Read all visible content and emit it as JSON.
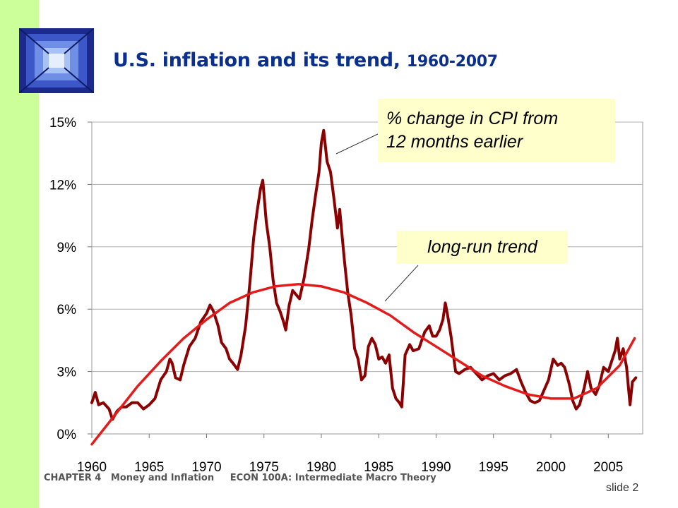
{
  "slide": {
    "title_main": "U.S. inflation and its trend, ",
    "title_years": "1960-2007",
    "footer": "CHAPTER 4   Money and Inflation     ECON 100A: Intermediate Macro Theory",
    "slide_number": "slide 2",
    "accent_color": "#ccff99",
    "title_color": "#0b2f8f"
  },
  "callouts": {
    "cpi_line1": "% change in CPI from",
    "cpi_line2": "12 months earlier",
    "trend": "long-run trend"
  },
  "chart_data": {
    "type": "line",
    "title": "U.S. inflation and its trend, 1960-2007",
    "x_ticks": [
      "1960",
      "1965",
      "1970",
      "1975",
      "1980",
      "1985",
      "1990",
      "1995",
      "2000",
      "2005"
    ],
    "y_ticks": [
      "0%",
      "3%",
      "6%",
      "9%",
      "12%",
      "15%"
    ],
    "xlim": [
      1960,
      2008
    ],
    "ylim": [
      0,
      15
    ],
    "grid": "horizontal",
    "series": [
      {
        "name": "% change in CPI from 12 months earlier",
        "color": "#8b0000",
        "points": [
          [
            1960.0,
            1.5
          ],
          [
            1960.3,
            2.0
          ],
          [
            1960.6,
            1.4
          ],
          [
            1961.0,
            1.5
          ],
          [
            1961.5,
            1.2
          ],
          [
            1961.8,
            0.7
          ],
          [
            1962.2,
            1.1
          ],
          [
            1962.6,
            1.3
          ],
          [
            1963.0,
            1.3
          ],
          [
            1963.5,
            1.5
          ],
          [
            1964.0,
            1.5
          ],
          [
            1964.5,
            1.2
          ],
          [
            1965.0,
            1.4
          ],
          [
            1965.5,
            1.7
          ],
          [
            1966.0,
            2.6
          ],
          [
            1966.5,
            3.0
          ],
          [
            1966.8,
            3.6
          ],
          [
            1967.0,
            3.4
          ],
          [
            1967.3,
            2.7
          ],
          [
            1967.7,
            2.6
          ],
          [
            1968.0,
            3.3
          ],
          [
            1968.5,
            4.2
          ],
          [
            1969.0,
            4.6
          ],
          [
            1969.5,
            5.4
          ],
          [
            1970.0,
            5.8
          ],
          [
            1970.3,
            6.2
          ],
          [
            1970.6,
            5.9
          ],
          [
            1971.0,
            5.2
          ],
          [
            1971.3,
            4.4
          ],
          [
            1971.7,
            4.1
          ],
          [
            1972.0,
            3.6
          ],
          [
            1972.3,
            3.4
          ],
          [
            1972.7,
            3.1
          ],
          [
            1973.0,
            3.8
          ],
          [
            1973.4,
            5.2
          ],
          [
            1973.8,
            7.4
          ],
          [
            1974.1,
            9.4
          ],
          [
            1974.4,
            10.7
          ],
          [
            1974.7,
            11.8
          ],
          [
            1974.9,
            12.2
          ],
          [
            1975.2,
            10.2
          ],
          [
            1975.5,
            9.0
          ],
          [
            1975.8,
            7.4
          ],
          [
            1976.1,
            6.3
          ],
          [
            1976.4,
            5.9
          ],
          [
            1976.7,
            5.4
          ],
          [
            1976.9,
            5.0
          ],
          [
            1977.2,
            6.2
          ],
          [
            1977.5,
            6.9
          ],
          [
            1977.8,
            6.7
          ],
          [
            1978.1,
            6.5
          ],
          [
            1978.5,
            7.5
          ],
          [
            1978.9,
            8.9
          ],
          [
            1979.2,
            10.3
          ],
          [
            1979.5,
            11.5
          ],
          [
            1979.8,
            12.6
          ],
          [
            1980.0,
            14.0
          ],
          [
            1980.2,
            14.6
          ],
          [
            1980.5,
            13.1
          ],
          [
            1980.8,
            12.6
          ],
          [
            1981.1,
            11.3
          ],
          [
            1981.4,
            9.9
          ],
          [
            1981.6,
            10.8
          ],
          [
            1981.8,
            9.6
          ],
          [
            1982.0,
            8.4
          ],
          [
            1982.3,
            6.8
          ],
          [
            1982.6,
            5.7
          ],
          [
            1982.9,
            4.1
          ],
          [
            1983.2,
            3.6
          ],
          [
            1983.5,
            2.6
          ],
          [
            1983.8,
            2.8
          ],
          [
            1984.1,
            4.2
          ],
          [
            1984.4,
            4.6
          ],
          [
            1984.7,
            4.3
          ],
          [
            1985.0,
            3.6
          ],
          [
            1985.3,
            3.7
          ],
          [
            1985.6,
            3.4
          ],
          [
            1985.9,
            3.8
          ],
          [
            1986.2,
            2.2
          ],
          [
            1986.5,
            1.7
          ],
          [
            1986.8,
            1.5
          ],
          [
            1987.0,
            1.3
          ],
          [
            1987.3,
            3.8
          ],
          [
            1987.7,
            4.3
          ],
          [
            1988.0,
            4.0
          ],
          [
            1988.5,
            4.1
          ],
          [
            1989.0,
            4.9
          ],
          [
            1989.4,
            5.2
          ],
          [
            1989.7,
            4.7
          ],
          [
            1990.0,
            4.7
          ],
          [
            1990.3,
            5.0
          ],
          [
            1990.6,
            5.5
          ],
          [
            1990.8,
            6.3
          ],
          [
            1991.0,
            5.7
          ],
          [
            1991.3,
            4.7
          ],
          [
            1991.7,
            3.0
          ],
          [
            1992.0,
            2.9
          ],
          [
            1992.5,
            3.1
          ],
          [
            1993.0,
            3.2
          ],
          [
            1993.5,
            2.9
          ],
          [
            1994.0,
            2.6
          ],
          [
            1994.5,
            2.8
          ],
          [
            1995.0,
            2.9
          ],
          [
            1995.5,
            2.6
          ],
          [
            1996.0,
            2.8
          ],
          [
            1996.5,
            2.9
          ],
          [
            1997.0,
            3.1
          ],
          [
            1997.4,
            2.5
          ],
          [
            1997.8,
            2.0
          ],
          [
            1998.2,
            1.6
          ],
          [
            1998.6,
            1.5
          ],
          [
            1999.0,
            1.6
          ],
          [
            1999.4,
            2.1
          ],
          [
            1999.8,
            2.6
          ],
          [
            2000.2,
            3.6
          ],
          [
            2000.6,
            3.3
          ],
          [
            2000.9,
            3.4
          ],
          [
            2001.2,
            3.2
          ],
          [
            2001.6,
            2.4
          ],
          [
            2001.9,
            1.6
          ],
          [
            2002.2,
            1.2
          ],
          [
            2002.5,
            1.4
          ],
          [
            2002.9,
            2.2
          ],
          [
            2003.2,
            3.0
          ],
          [
            2003.5,
            2.2
          ],
          [
            2003.9,
            1.9
          ],
          [
            2004.2,
            2.3
          ],
          [
            2004.6,
            3.2
          ],
          [
            2005.0,
            3.0
          ],
          [
            2005.3,
            3.5
          ],
          [
            2005.6,
            4.0
          ],
          [
            2005.8,
            4.6
          ],
          [
            2006.0,
            3.6
          ],
          [
            2006.3,
            4.1
          ],
          [
            2006.6,
            3.2
          ],
          [
            2006.9,
            1.4
          ],
          [
            2007.1,
            2.5
          ],
          [
            2007.4,
            2.7
          ]
        ]
      },
      {
        "name": "long-run trend",
        "color": "#e31b1b",
        "points": [
          [
            1960,
            -0.5
          ],
          [
            1962,
            0.9
          ],
          [
            1964,
            2.3
          ],
          [
            1966,
            3.5
          ],
          [
            1968,
            4.6
          ],
          [
            1970,
            5.5
          ],
          [
            1972,
            6.3
          ],
          [
            1974,
            6.8
          ],
          [
            1976,
            7.1
          ],
          [
            1978,
            7.2
          ],
          [
            1980,
            7.1
          ],
          [
            1982,
            6.8
          ],
          [
            1984,
            6.3
          ],
          [
            1986,
            5.7
          ],
          [
            1988,
            4.9
          ],
          [
            1990,
            4.2
          ],
          [
            1992,
            3.5
          ],
          [
            1994,
            2.8
          ],
          [
            1996,
            2.3
          ],
          [
            1998,
            1.9
          ],
          [
            2000,
            1.7
          ],
          [
            2002,
            1.7
          ],
          [
            2004,
            2.2
          ],
          [
            2006,
            3.3
          ],
          [
            2007.3,
            4.6
          ]
        ]
      }
    ]
  }
}
